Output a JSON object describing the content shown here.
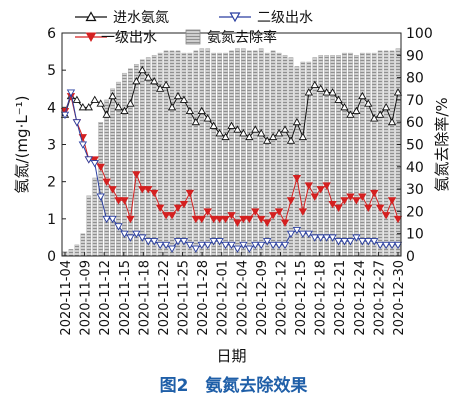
{
  "caption": "图2　氨氮去除效果",
  "chart_data": {
    "type": "bar+line",
    "xlabel": "日期",
    "ylabel_left": "氨氮/(mg·L⁻¹)",
    "ylabel_right": "氨氮去除率/%",
    "ylim_left": [
      0,
      6
    ],
    "ylim_right": [
      0,
      100
    ],
    "yticks_left": [
      0,
      1,
      2,
      3,
      4,
      5,
      6
    ],
    "yticks_right": [
      0,
      10,
      20,
      30,
      40,
      50,
      60,
      70,
      80,
      90,
      100
    ],
    "x_tick_labels": [
      "2020-11-04",
      "2020-11-09",
      "2020-11-12",
      "2020-11-15",
      "2020-11-18",
      "2020-11-22",
      "2020-11-25",
      "2020-11-28",
      "2020-12-01",
      "2020-12-04",
      "2020-12-09",
      "2020-12-12",
      "2020-12-15",
      "2020-12-18",
      "2020-12-21",
      "2020-12-24",
      "2020-12-27",
      "2020-12-30"
    ],
    "x": [
      "2020-11-04",
      "2020-11-05",
      "2020-11-06",
      "2020-11-07",
      "2020-11-08",
      "2020-11-09",
      "2020-11-10",
      "2020-11-11",
      "2020-11-12",
      "2020-11-13",
      "2020-11-14",
      "2020-11-15",
      "2020-11-16",
      "2020-11-17",
      "2020-11-18",
      "2020-11-19",
      "2020-11-20",
      "2020-11-21",
      "2020-11-22",
      "2020-11-23",
      "2020-11-24",
      "2020-11-25",
      "2020-11-26",
      "2020-11-27",
      "2020-11-28",
      "2020-11-29",
      "2020-11-30",
      "2020-12-01",
      "2020-12-02",
      "2020-12-03",
      "2020-12-04",
      "2020-12-05",
      "2020-12-06",
      "2020-12-07",
      "2020-12-08",
      "2020-12-09",
      "2020-12-10",
      "2020-12-11",
      "2020-12-12",
      "2020-12-13",
      "2020-12-14",
      "2020-12-15",
      "2020-12-16",
      "2020-12-17",
      "2020-12-18",
      "2020-12-19",
      "2020-12-20",
      "2020-12-21",
      "2020-12-22",
      "2020-12-23",
      "2020-12-24",
      "2020-12-25",
      "2020-12-26",
      "2020-12-27",
      "2020-12-28",
      "2020-12-29",
      "2020-12-30"
    ],
    "legend": [
      "进水氨氮",
      "二级出水",
      "一级出水",
      "氨氮去除率"
    ],
    "series": [
      {
        "name": "进水氨氮",
        "axis": "left",
        "type": "line",
        "marker": "triangle-up-open",
        "color": "#111111",
        "values": [
          3.8,
          4.3,
          4.2,
          4.0,
          4.0,
          4.2,
          4.1,
          3.8,
          4.3,
          4.0,
          3.9,
          4.1,
          4.7,
          5.0,
          4.8,
          4.7,
          4.5,
          4.6,
          4.0,
          4.3,
          4.2,
          3.9,
          3.6,
          3.9,
          3.7,
          3.5,
          3.3,
          3.2,
          3.5,
          3.4,
          3.3,
          3.2,
          3.4,
          3.3,
          3.1,
          3.2,
          3.3,
          3.4,
          3.1,
          3.6,
          3.2,
          4.4,
          4.6,
          4.5,
          4.4,
          4.4,
          4.2,
          4.0,
          3.8,
          3.9,
          4.3,
          4.1,
          3.7,
          3.8,
          4.0,
          3.6,
          4.4
        ]
      },
      {
        "name": "一级出水",
        "axis": "left",
        "type": "line",
        "marker": "triangle-down-filled",
        "color": "#d42020",
        "values": [
          3.9,
          4.3,
          3.6,
          3.2,
          2.6,
          2.6,
          2.4,
          2.0,
          1.8,
          1.5,
          1.5,
          1.0,
          2.2,
          1.8,
          1.8,
          1.7,
          1.3,
          1.1,
          1.1,
          1.3,
          1.4,
          1.7,
          1.0,
          1.0,
          1.2,
          1.0,
          1.0,
          1.0,
          1.1,
          0.9,
          1.0,
          1.0,
          1.2,
          1.0,
          0.9,
          1.1,
          1.2,
          0.9,
          1.5,
          2.1,
          1.2,
          1.9,
          1.6,
          1.8,
          1.9,
          1.4,
          1.3,
          1.5,
          1.6,
          1.5,
          1.6,
          1.3,
          1.7,
          1.3,
          1.1,
          1.5,
          1.0
        ]
      },
      {
        "name": "二级出水",
        "axis": "left",
        "type": "line",
        "marker": "triangle-down-open",
        "color": "#2a3fa0",
        "values": [
          3.8,
          4.4,
          3.6,
          3.0,
          2.6,
          2.5,
          1.6,
          1.0,
          1.0,
          0.8,
          0.6,
          0.5,
          0.6,
          0.5,
          0.4,
          0.4,
          0.3,
          0.3,
          0.2,
          0.4,
          0.4,
          0.3,
          0.2,
          0.3,
          0.3,
          0.4,
          0.4,
          0.3,
          0.3,
          0.2,
          0.3,
          0.2,
          0.3,
          0.3,
          0.4,
          0.3,
          0.3,
          0.3,
          0.6,
          0.7,
          0.6,
          0.6,
          0.5,
          0.5,
          0.5,
          0.5,
          0.4,
          0.4,
          0.4,
          0.5,
          0.4,
          0.4,
          0.4,
          0.3,
          0.3,
          0.3,
          0.3
        ]
      },
      {
        "name": "氨氮去除率",
        "axis": "right",
        "type": "bar",
        "pattern": "gray-hatch",
        "color": "#9a9a9a",
        "values": [
          2,
          3,
          5,
          10,
          27,
          35,
          60,
          70,
          75,
          78,
          82,
          84,
          86,
          88,
          89,
          90,
          91,
          92,
          92,
          92,
          91,
          91,
          92,
          93,
          93,
          91,
          91,
          91,
          92,
          93,
          93,
          92,
          92,
          93,
          91,
          92,
          91,
          90,
          89,
          85,
          87,
          87,
          89,
          90,
          90,
          90,
          90,
          91,
          91,
          90,
          91,
          91,
          91,
          92,
          92,
          92,
          93
        ]
      }
    ]
  }
}
